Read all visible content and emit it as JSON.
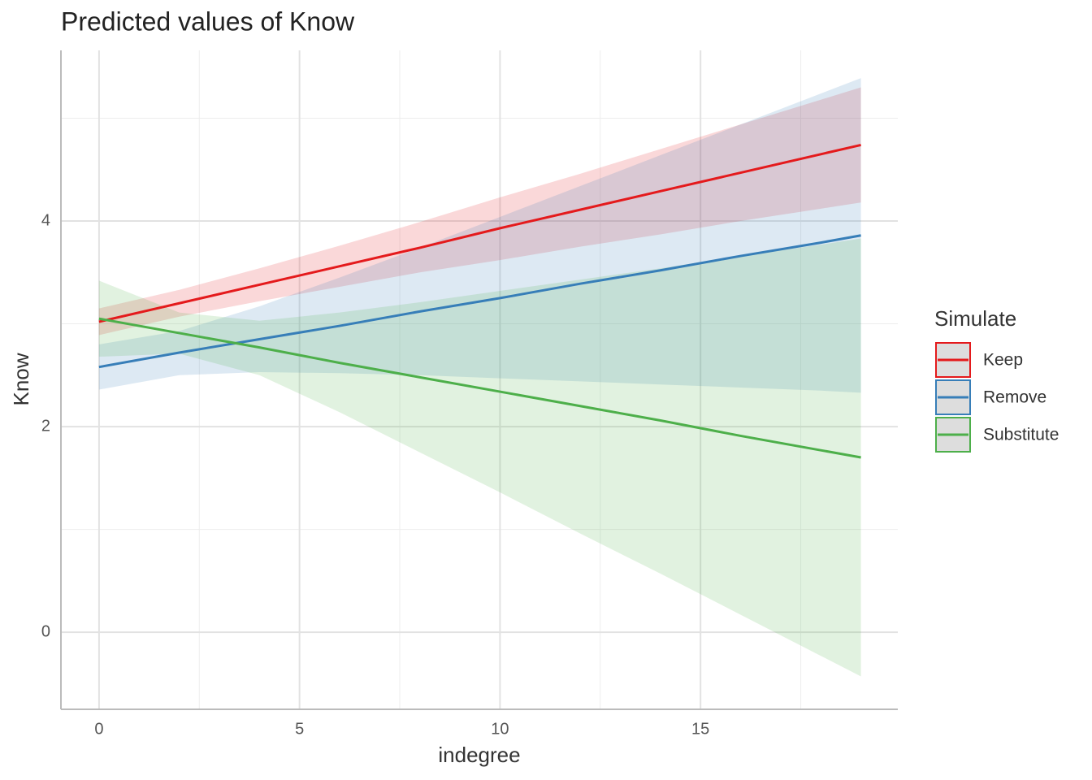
{
  "chart_data": {
    "type": "line",
    "title": "Predicted values of Know",
    "x_label": "indegree",
    "y_label": "Know",
    "legend_title": "Simulate",
    "legend_position": "right",
    "x": [
      0,
      2,
      4,
      6,
      8,
      10,
      12,
      14,
      16,
      18,
      19
    ],
    "series": [
      {
        "name": "Keep",
        "color": "#e41a1c",
        "values": [
          3.02,
          3.2,
          3.38,
          3.56,
          3.74,
          3.93,
          4.11,
          4.29,
          4.47,
          4.65,
          4.74
        ],
        "lower": [
          2.89,
          3.07,
          3.22,
          3.36,
          3.5,
          3.62,
          3.75,
          3.87,
          4.0,
          4.12,
          4.18
        ],
        "upper": [
          3.15,
          3.33,
          3.54,
          3.76,
          3.99,
          4.23,
          4.46,
          4.7,
          4.94,
          5.18,
          5.3
        ]
      },
      {
        "name": "Remove",
        "color": "#377eb8",
        "values": [
          2.58,
          2.72,
          2.85,
          2.98,
          3.12,
          3.25,
          3.39,
          3.52,
          3.66,
          3.79,
          3.86
        ],
        "lower": [
          2.36,
          2.5,
          2.53,
          2.52,
          2.5,
          2.47,
          2.44,
          2.41,
          2.38,
          2.35,
          2.33
        ],
        "upper": [
          2.8,
          2.93,
          3.17,
          3.45,
          3.74,
          4.04,
          4.34,
          4.64,
          4.94,
          5.24,
          5.39
        ]
      },
      {
        "name": "Substitute",
        "color": "#4daf4a",
        "values": [
          3.05,
          2.91,
          2.77,
          2.62,
          2.48,
          2.34,
          2.2,
          2.06,
          1.91,
          1.77,
          1.7
        ],
        "lower": [
          2.68,
          2.71,
          2.5,
          2.14,
          1.75,
          1.36,
          0.96,
          0.57,
          0.17,
          -0.23,
          -0.43
        ],
        "upper": [
          3.42,
          3.11,
          3.03,
          3.11,
          3.21,
          3.32,
          3.43,
          3.54,
          3.66,
          3.77,
          3.83
        ]
      }
    ],
    "xlim": [
      -0.95,
      19.92
    ],
    "ylim": [
      -0.75,
      5.66
    ],
    "xticks": [
      0,
      5,
      10,
      15
    ],
    "yticks": [
      0,
      2,
      4
    ],
    "x_minor_grid": [
      2.5,
      7.5,
      12.5,
      17.5
    ],
    "y_minor_grid": [
      1,
      3,
      5
    ],
    "grid": true
  }
}
